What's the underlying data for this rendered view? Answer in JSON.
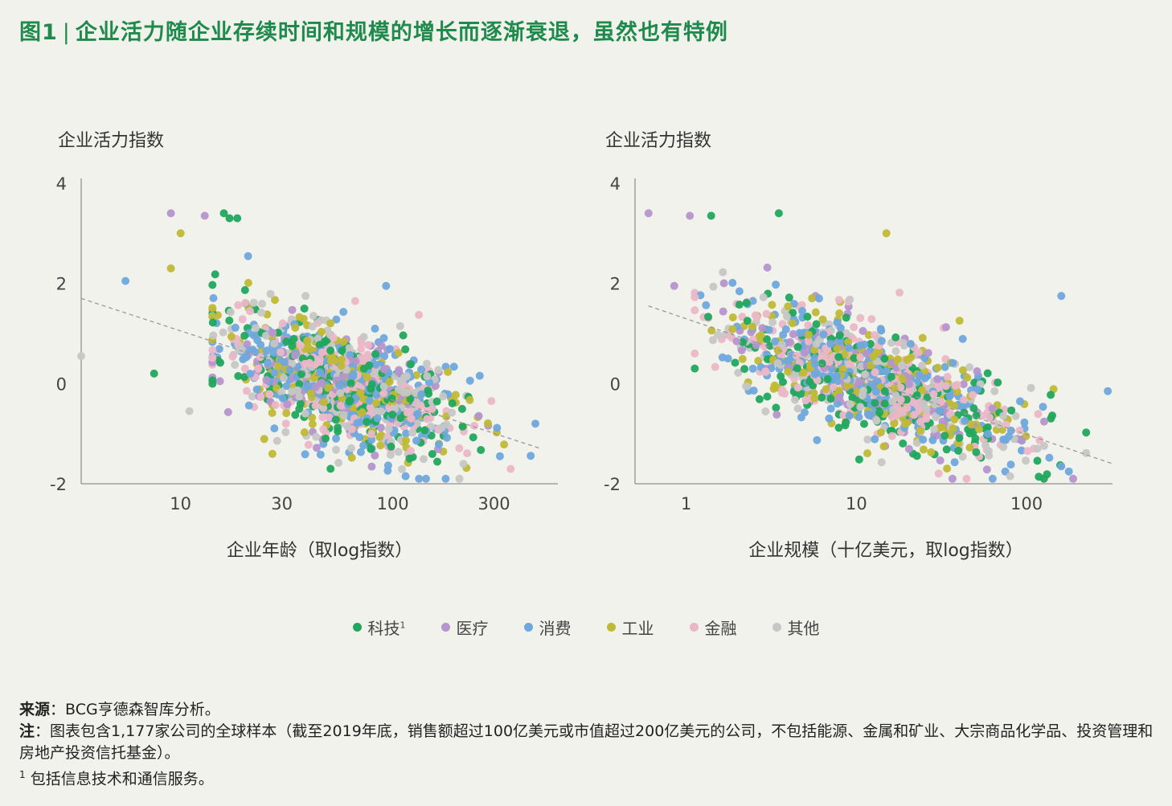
{
  "figure": {
    "label": "图1",
    "title": "企业活力随企业存续时间和规模的增长而逐渐衰退，虽然也有特例"
  },
  "colors": {
    "科技": "#21a65e",
    "医疗": "#b495cc",
    "消费": "#6fa8dc",
    "工业": "#c0b936",
    "金融": "#eab7c8",
    "其他": "#c6c6c6",
    "trend": "#999999"
  },
  "legend": [
    {
      "key": "科技",
      "label": "科技",
      "sup": "1"
    },
    {
      "key": "医疗",
      "label": "医疗",
      "sup": ""
    },
    {
      "key": "消费",
      "label": "消费",
      "sup": ""
    },
    {
      "key": "工业",
      "label": "工业",
      "sup": ""
    },
    {
      "key": "金融",
      "label": "金融",
      "sup": ""
    },
    {
      "key": "其他",
      "label": "其他",
      "sup": ""
    }
  ],
  "chart_data": [
    {
      "type": "scatter",
      "id": "age",
      "ylabel": "企业活力指数",
      "xlabel": "企业年龄（取log指数）",
      "x_scale": "log",
      "xlim": [
        3.4,
        600
      ],
      "ylim": [
        -2,
        4
      ],
      "xticks": [
        10,
        30,
        100,
        300
      ],
      "xtick_labels": [
        "10",
        "30",
        "100",
        "300"
      ],
      "yticks": [
        -2,
        0,
        2,
        4
      ],
      "ytick_labels": [
        "-2",
        "0",
        "2",
        "4"
      ],
      "trend": [
        [
          3.4,
          1.7
        ],
        [
          500,
          -1.3
        ]
      ],
      "n_points": 1177,
      "outliers": [
        {
          "x": 9,
          "y": 3.4,
          "cat": "医疗"
        },
        {
          "x": 13,
          "y": 3.35,
          "cat": "医疗"
        },
        {
          "x": 16,
          "y": 3.4,
          "cat": "科技"
        },
        {
          "x": 17,
          "y": 3.3,
          "cat": "科技"
        },
        {
          "x": 18.5,
          "y": 3.3,
          "cat": "科技"
        },
        {
          "x": 10,
          "y": 3.0,
          "cat": "工业"
        },
        {
          "x": 5.5,
          "y": 2.05,
          "cat": "消费"
        },
        {
          "x": 9,
          "y": 2.3,
          "cat": "工业"
        },
        {
          "x": 3.4,
          "y": 0.55,
          "cat": "其他"
        },
        {
          "x": 7.5,
          "y": 0.2,
          "cat": "科技"
        },
        {
          "x": 11,
          "y": -0.55,
          "cat": "其他"
        },
        {
          "x": 93,
          "y": 1.95,
          "cat": "消费"
        },
        {
          "x": 470,
          "y": -0.8,
          "cat": "消费"
        },
        {
          "x": 320,
          "y": -1.45,
          "cat": "消费"
        },
        {
          "x": 115,
          "y": -1.85,
          "cat": "消费"
        }
      ]
    },
    {
      "type": "scatter",
      "id": "size",
      "ylabel": "企业活力指数",
      "xlabel": "企业规模（十亿美元，取log指数）",
      "x_scale": "log",
      "xlim": [
        0.5,
        320
      ],
      "ylim": [
        -2,
        4
      ],
      "xticks": [
        1,
        10,
        100
      ],
      "xtick_labels": [
        "1",
        "10",
        "100"
      ],
      "yticks": [
        -2,
        0,
        2,
        4
      ],
      "ytick_labels": [
        "-2",
        "0",
        "2",
        "4"
      ],
      "trend": [
        [
          0.6,
          1.55
        ],
        [
          320,
          -1.6
        ]
      ],
      "n_points": 1177,
      "outliers": [
        {
          "x": 0.6,
          "y": 3.4,
          "cat": "医疗"
        },
        {
          "x": 1.05,
          "y": 3.35,
          "cat": "医疗"
        },
        {
          "x": 1.4,
          "y": 3.35,
          "cat": "科技"
        },
        {
          "x": 3.5,
          "y": 3.4,
          "cat": "科技"
        },
        {
          "x": 15,
          "y": 3.0,
          "cat": "工业"
        },
        {
          "x": 0.85,
          "y": 1.95,
          "cat": "医疗"
        },
        {
          "x": 300,
          "y": -0.15,
          "cat": "消费"
        },
        {
          "x": 160,
          "y": 1.75,
          "cat": "消费"
        },
        {
          "x": 160,
          "y": -1.65,
          "cat": "消费"
        },
        {
          "x": 80,
          "y": -1.85,
          "cat": "其他"
        }
      ]
    }
  ],
  "notes": {
    "source_label": "来源",
    "source_text": "BCG亨德森智库分析。",
    "note_label": "注",
    "note_text": "图表包含1,177家公司的全球样本（截至2019年底，销售额超过100亿美元或市值超过200亿美元的公司，不包括能源、金属和矿业、大宗商品化学品、投资管理和房地产投资信托基金）。",
    "footnote_num": "1",
    "footnote_text": "包括信息技术和通信服务。"
  }
}
